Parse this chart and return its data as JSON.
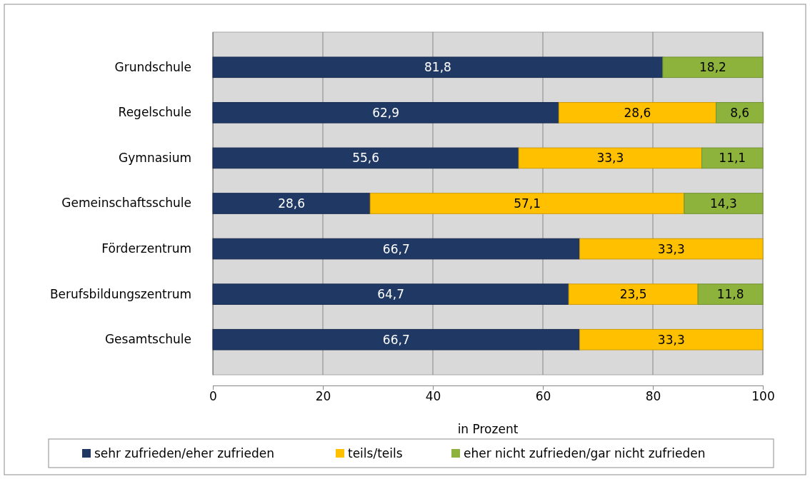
{
  "chart_data": {
    "type": "bar",
    "orientation": "horizontal",
    "stacked": true,
    "xlabel": "in Prozent",
    "categories": [
      "Grundschule",
      "Regelschule",
      "Gymnasium",
      "Gemeinschaftsschule",
      "Förderzentrum",
      "Berufsbildungszentrum",
      "Gesamtschule"
    ],
    "series": [
      {
        "name": "sehr zufrieden/eher zufrieden",
        "color": "#1f3864",
        "values": [
          81.8,
          62.9,
          55.6,
          28.6,
          66.7,
          64.7,
          66.7
        ],
        "value_labels": [
          "81,8",
          "62,9",
          "55,6",
          "28,6",
          "66,7",
          "64,7",
          "66,7"
        ]
      },
      {
        "name": "teils/teils",
        "color": "#ffc000",
        "values": [
          null,
          28.6,
          33.3,
          57.1,
          33.3,
          23.5,
          33.3
        ],
        "value_labels": [
          null,
          "28,6",
          "33,3",
          "57,1",
          "33,3",
          "23,5",
          "33,3"
        ]
      },
      {
        "name": "eher nicht zufrieden/gar nicht zufrieden",
        "color": "#8db33c",
        "values": [
          18.2,
          8.6,
          11.1,
          14.3,
          null,
          11.8,
          null
        ],
        "value_labels": [
          "18,2",
          "8,6",
          "11,1",
          "14,3",
          null,
          "11,8",
          null
        ]
      }
    ],
    "xlim": [
      0,
      100
    ],
    "xticks": [
      0,
      20,
      40,
      60,
      80,
      100
    ],
    "grid": "x",
    "legend": "bottom"
  }
}
